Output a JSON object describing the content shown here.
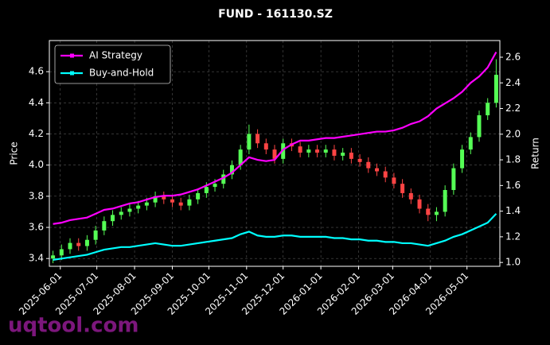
{
  "chart_data": {
    "type": "candlestick",
    "title": "FUND - 161130.SZ",
    "ylabel": "Price",
    "y2label": "Return",
    "watermark": "uqtool.com",
    "x": [
      "2025-05-26",
      "2025-06-02",
      "2025-06-09",
      "2025-06-16",
      "2025-06-23",
      "2025-06-30",
      "2025-07-07",
      "2025-07-14",
      "2025-07-21",
      "2025-07-28",
      "2025-08-04",
      "2025-08-11",
      "2025-08-18",
      "2025-08-25",
      "2025-09-01",
      "2025-09-08",
      "2025-09-15",
      "2025-09-22",
      "2025-09-29",
      "2025-10-06",
      "2025-10-13",
      "2025-10-20",
      "2025-10-27",
      "2025-11-03",
      "2025-11-10",
      "2025-11-17",
      "2025-11-24",
      "2025-12-01",
      "2025-12-08",
      "2025-12-15",
      "2025-12-22",
      "2025-12-29",
      "2026-01-05",
      "2026-01-12",
      "2026-01-19",
      "2026-01-26",
      "2026-02-02",
      "2026-02-09",
      "2026-02-16",
      "2026-02-23",
      "2026-03-02",
      "2026-03-09",
      "2026-03-16",
      "2026-03-23",
      "2026-03-30",
      "2026-04-06",
      "2026-04-13",
      "2026-04-20",
      "2026-04-27",
      "2026-05-04",
      "2026-05-11",
      "2026-05-18",
      "2026-05-25"
    ],
    "open": [
      3.4,
      3.42,
      3.46,
      3.5,
      3.48,
      3.52,
      3.58,
      3.64,
      3.68,
      3.7,
      3.72,
      3.74,
      3.76,
      3.8,
      3.78,
      3.76,
      3.74,
      3.78,
      3.82,
      3.86,
      3.88,
      3.94,
      4.0,
      4.1,
      4.2,
      4.14,
      4.1,
      4.04,
      4.14,
      4.12,
      4.08,
      4.1,
      4.08,
      4.1,
      4.06,
      4.08,
      4.04,
      4.02,
      3.98,
      3.96,
      3.92,
      3.88,
      3.82,
      3.78,
      3.72,
      3.68,
      3.7,
      3.84,
      3.98,
      4.1,
      4.18,
      4.32,
      4.4
    ],
    "high": [
      3.45,
      3.49,
      3.53,
      3.53,
      3.55,
      3.61,
      3.67,
      3.71,
      3.73,
      3.75,
      3.77,
      3.79,
      3.83,
      3.83,
      3.81,
      3.79,
      3.81,
      3.85,
      3.89,
      3.91,
      3.97,
      4.03,
      4.13,
      4.26,
      4.23,
      4.17,
      4.13,
      4.17,
      4.17,
      4.15,
      4.13,
      4.13,
      4.13,
      4.13,
      4.11,
      4.11,
      4.07,
      4.05,
      4.01,
      3.99,
      3.95,
      3.91,
      3.85,
      3.81,
      3.75,
      3.73,
      3.87,
      4.01,
      4.13,
      4.21,
      4.35,
      4.43,
      4.68
    ],
    "low": [
      3.37,
      3.39,
      3.43,
      3.45,
      3.45,
      3.49,
      3.55,
      3.61,
      3.65,
      3.67,
      3.69,
      3.71,
      3.73,
      3.75,
      3.73,
      3.71,
      3.71,
      3.75,
      3.79,
      3.83,
      3.85,
      3.91,
      3.97,
      4.07,
      4.11,
      4.07,
      4.01,
      4.01,
      4.09,
      4.05,
      4.05,
      4.05,
      4.05,
      4.03,
      4.03,
      4.01,
      3.99,
      3.95,
      3.93,
      3.89,
      3.85,
      3.79,
      3.75,
      3.69,
      3.64,
      3.64,
      3.67,
      3.81,
      3.95,
      4.07,
      4.15,
      4.29,
      4.37
    ],
    "close": [
      3.42,
      3.46,
      3.5,
      3.48,
      3.52,
      3.58,
      3.64,
      3.68,
      3.7,
      3.72,
      3.74,
      3.76,
      3.8,
      3.78,
      3.76,
      3.74,
      3.78,
      3.82,
      3.86,
      3.88,
      3.94,
      4.0,
      4.1,
      4.2,
      4.14,
      4.1,
      4.04,
      4.14,
      4.12,
      4.08,
      4.1,
      4.08,
      4.1,
      4.06,
      4.08,
      4.04,
      4.02,
      3.98,
      3.96,
      3.92,
      3.88,
      3.82,
      3.78,
      3.72,
      3.68,
      3.7,
      3.84,
      3.98,
      4.1,
      4.18,
      4.32,
      4.4,
      4.58
    ],
    "up_color": "#55ff55",
    "down_color": "#ff4444",
    "series": [
      {
        "name": "AI Strategy",
        "color": "#ff00ff",
        "axis": "y2",
        "values": [
          1.3,
          1.31,
          1.33,
          1.34,
          1.35,
          1.38,
          1.41,
          1.42,
          1.44,
          1.46,
          1.47,
          1.49,
          1.51,
          1.52,
          1.52,
          1.53,
          1.55,
          1.57,
          1.6,
          1.63,
          1.66,
          1.7,
          1.76,
          1.82,
          1.8,
          1.79,
          1.8,
          1.88,
          1.92,
          1.95,
          1.95,
          1.96,
          1.97,
          1.97,
          1.98,
          1.99,
          2.0,
          2.01,
          2.02,
          2.02,
          2.03,
          2.05,
          2.08,
          2.1,
          2.14,
          2.2,
          2.24,
          2.28,
          2.33,
          2.4,
          2.45,
          2.52,
          2.64
        ]
      },
      {
        "name": "Buy-and-Hold",
        "color": "#00ffff",
        "axis": "y2",
        "values": [
          1.02,
          1.03,
          1.04,
          1.05,
          1.06,
          1.08,
          1.1,
          1.11,
          1.12,
          1.12,
          1.13,
          1.14,
          1.15,
          1.14,
          1.13,
          1.13,
          1.14,
          1.15,
          1.16,
          1.17,
          1.18,
          1.19,
          1.22,
          1.24,
          1.21,
          1.2,
          1.2,
          1.21,
          1.21,
          1.2,
          1.2,
          1.2,
          1.2,
          1.19,
          1.19,
          1.18,
          1.18,
          1.17,
          1.17,
          1.16,
          1.16,
          1.15,
          1.15,
          1.14,
          1.13,
          1.15,
          1.17,
          1.2,
          1.22,
          1.25,
          1.28,
          1.31,
          1.38
        ]
      }
    ],
    "xlim": [
      "2025-05-23",
      "2026-05-28"
    ],
    "xticks": [
      "2025-06-01",
      "2025-07-01",
      "2025-08-01",
      "2025-09-01",
      "2025-10-01",
      "2025-11-01",
      "2025-12-01",
      "2026-01-01",
      "2026-02-01",
      "2026-03-01",
      "2026-04-01",
      "2026-05-01"
    ],
    "ylim": [
      3.35,
      4.8
    ],
    "yticks": [
      3.4,
      3.6,
      3.8,
      {
        "value": 4,
        "label": "4.0"
      },
      4.2,
      4.4,
      4.6
    ],
    "y2lim": [
      0.97,
      2.73
    ],
    "y2ticks": [
      {
        "value": 1,
        "label": "1.0"
      },
      1.2,
      1.4,
      1.6,
      1.8,
      {
        "value": 2,
        "label": "2.0"
      },
      2.2,
      2.4,
      2.6
    ],
    "grid": true,
    "legend": "upper left"
  }
}
